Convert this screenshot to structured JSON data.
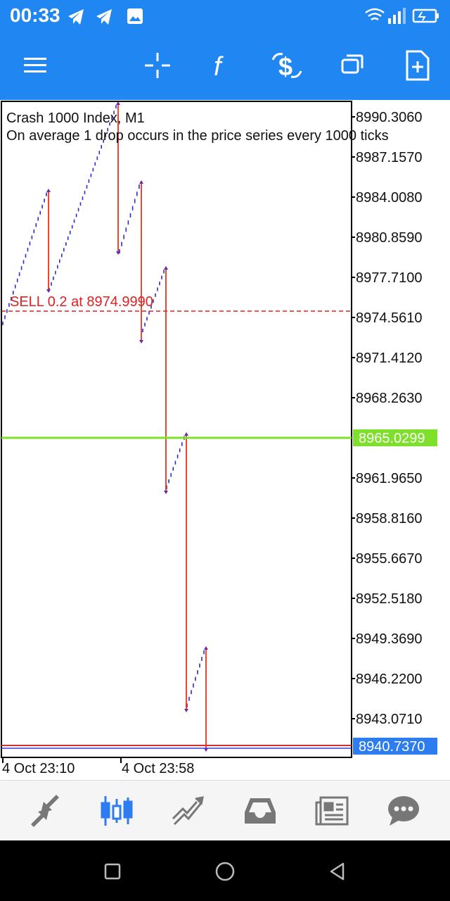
{
  "status_bar": {
    "time": "00:33",
    "icons": [
      "telegram-icon",
      "telegram-icon",
      "image-icon",
      "wifi-icon",
      "signal-icon",
      "battery-charging-icon"
    ]
  },
  "toolbar": {
    "buttons": [
      "menu-icon",
      "crosshair-icon",
      "indicators-icon",
      "trade-icon",
      "windows-icon",
      "add-document-icon"
    ]
  },
  "chart": {
    "symbol_line": "Crash 1000 Index, M1",
    "description": "On average 1 drop occurs in the price series every 1000 ticks",
    "order_label": "SELL 0.2 at 8974.9990",
    "bid_price": "8965.0299",
    "ask_price": "8940.7370",
    "price_axis": [
      "8990.3060",
      "8987.1570",
      "8984.0080",
      "8980.8590",
      "8977.7100",
      "8974.5610",
      "8971.4120",
      "8968.2630",
      "8961.9650",
      "8958.8160",
      "8955.6670",
      "8952.5180",
      "8949.3690",
      "8946.2200",
      "8943.0710"
    ],
    "time_axis": [
      "4 Oct 23:10",
      "4 Oct 23:58"
    ],
    "colors": {
      "bull": "#2a2ad4",
      "drop": "#e8341c",
      "order_line": "#e02020",
      "bid_line": "#7ee02a",
      "ask_label_bg": "#2d7cf0"
    }
  },
  "bottom_nav": [
    "trade-arrows-icon",
    "chart-candles-icon",
    "trade-line-icon",
    "inbox-icon",
    "news-icon",
    "chat-icon"
  ],
  "system_nav": [
    "recents-icon",
    "home-icon",
    "back-icon"
  ]
}
